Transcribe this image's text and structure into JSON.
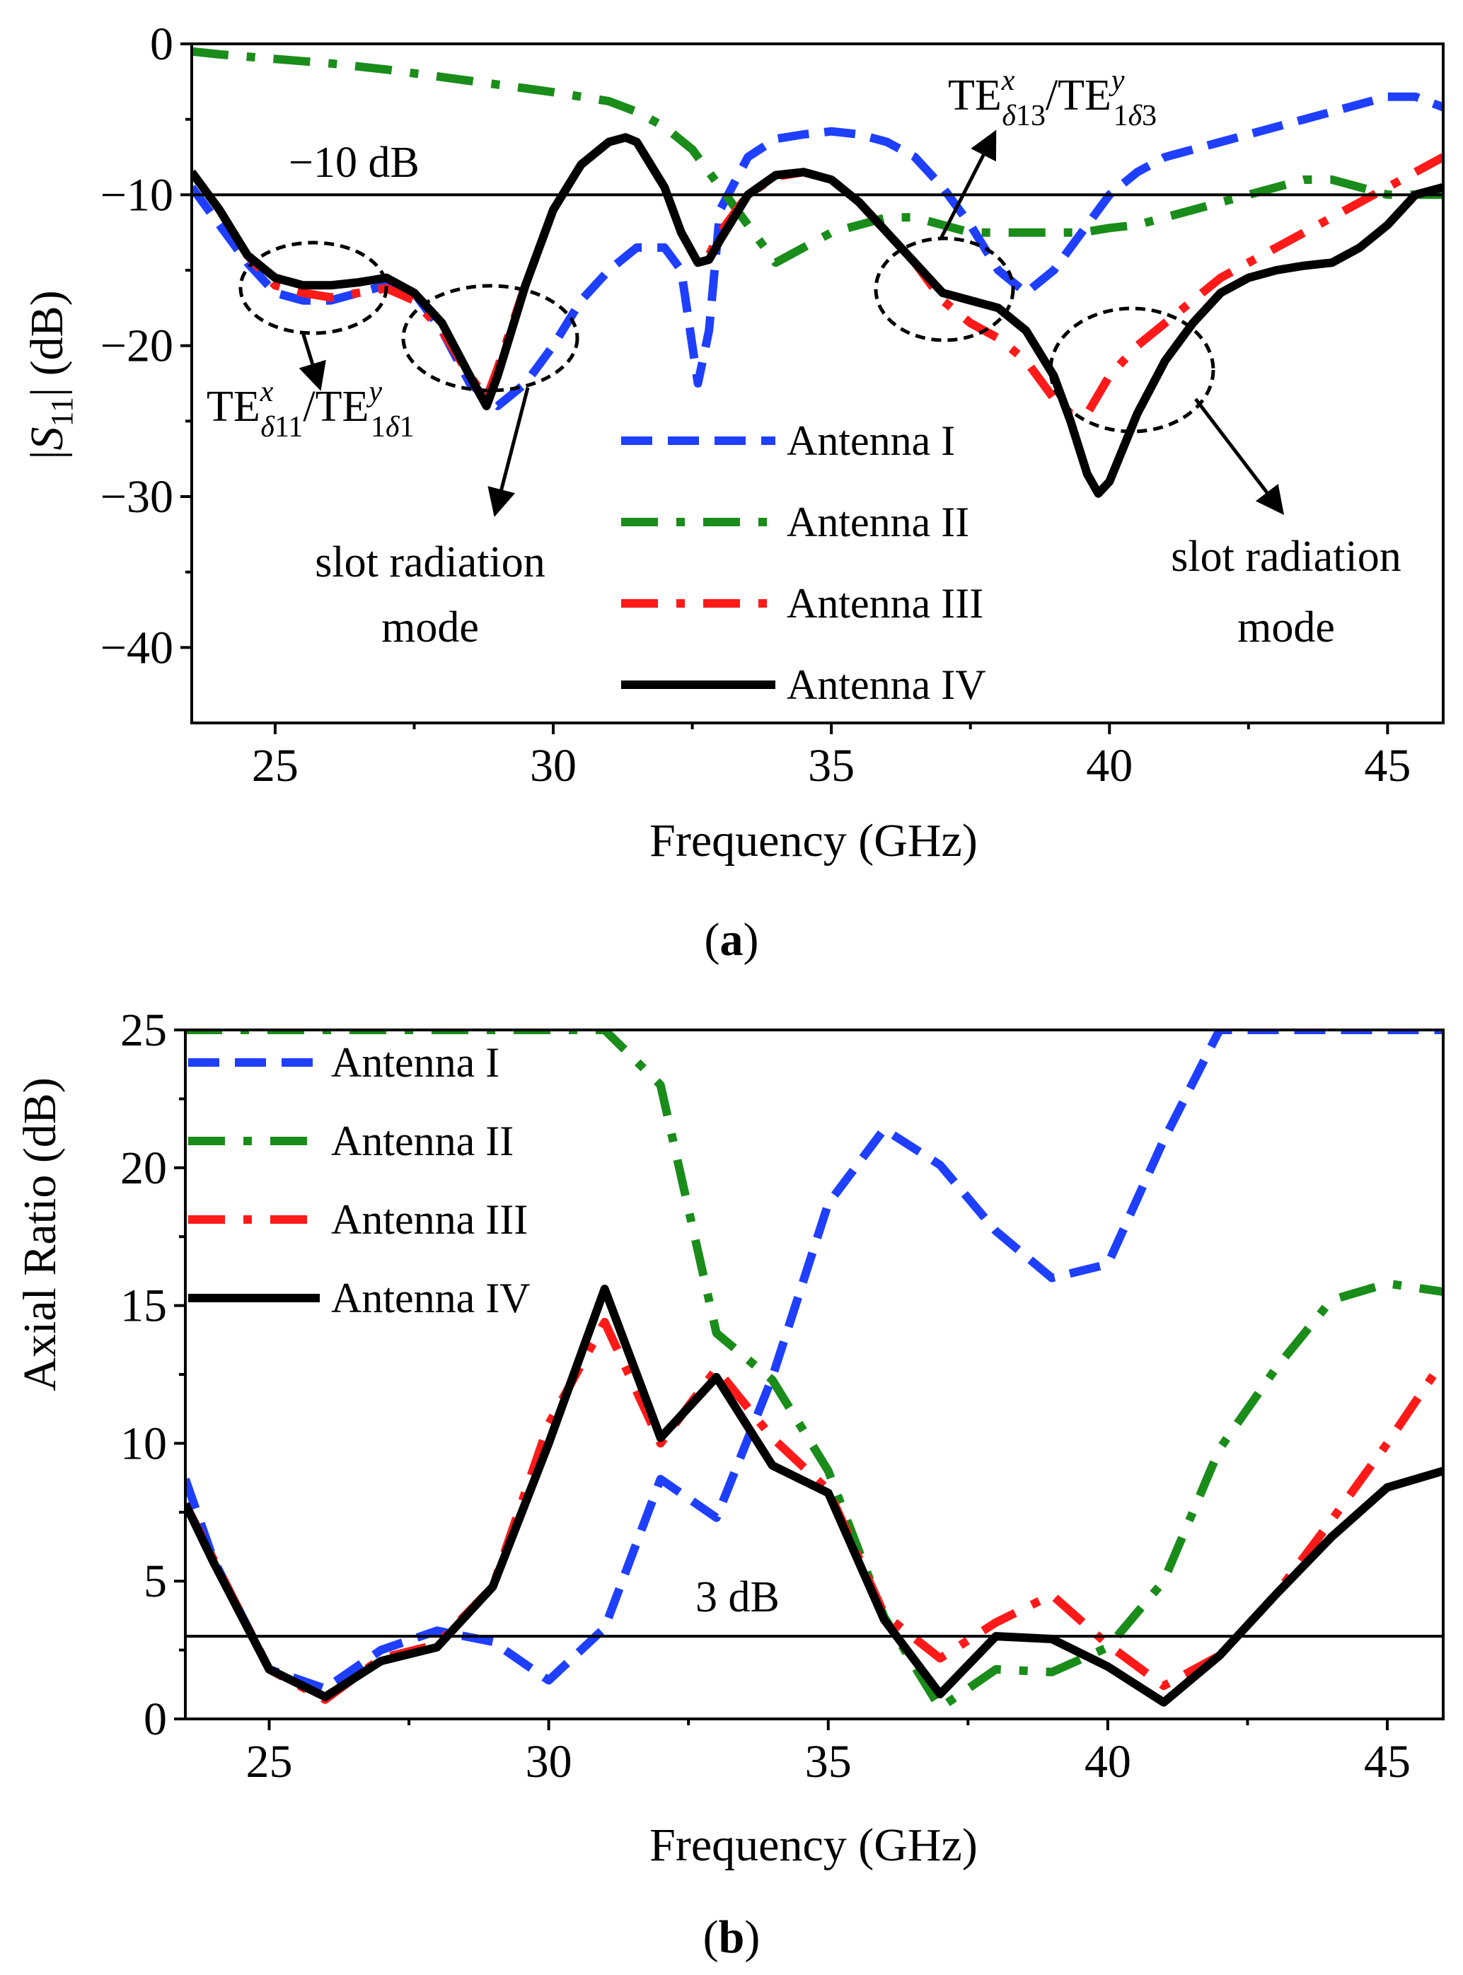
{
  "chart_data": [
    {
      "type": "line",
      "panel_label": "a",
      "xlabel": "Frequency (GHz)",
      "ylabel": "|S11| (dB)",
      "xlim": [
        23.5,
        46
      ],
      "ylim": [
        -45,
        0
      ],
      "xticks": [
        25,
        30,
        35,
        40,
        45
      ],
      "yticks": [
        0,
        -10,
        -20,
        -30,
        -40
      ],
      "ytick_labels": [
        "0",
        "−10",
        "−20",
        "−30",
        "−40"
      ],
      "grid": false,
      "legend_position": "bottom-center",
      "reference_line": {
        "y": -10,
        "label": "−10 dB"
      },
      "annotations": {
        "mode1": "TEx δ11/TEy 1δ1",
        "mode2": "TEx δ13/TEy 1δ3",
        "slot_left": [
          "slot radiation",
          "mode"
        ],
        "slot_right": [
          "slot radiation",
          "mode"
        ]
      },
      "series": [
        {
          "name": "Antenna I",
          "color": "#1f3fff",
          "dash": "dash",
          "x": [
            23.5,
            24,
            24.5,
            25,
            25.5,
            26,
            26.5,
            27,
            27.5,
            28,
            28.5,
            29,
            29.5,
            30,
            30.5,
            31,
            31.5,
            32,
            32.3,
            32.6,
            32.8,
            33,
            33.5,
            34,
            34.5,
            35,
            35.5,
            36,
            36.5,
            37,
            37.5,
            38,
            38.5,
            39,
            39.5,
            40,
            40.5,
            41,
            41.5,
            42,
            42.5,
            43,
            43.5,
            44,
            44.5,
            45,
            45.5,
            46
          ],
          "y": [
            -9.5,
            -12,
            -14.5,
            -16.5,
            -17,
            -17,
            -16.5,
            -16,
            -16.5,
            -19,
            -22.5,
            -24,
            -22.5,
            -20,
            -17,
            -15,
            -13.5,
            -13.5,
            -15,
            -22.5,
            -19,
            -11,
            -7.5,
            -6.3,
            -6,
            -5.8,
            -6,
            -6.5,
            -7.5,
            -9.5,
            -12,
            -15,
            -16.5,
            -15,
            -12.5,
            -10,
            -8.5,
            -7.5,
            -7,
            -6.5,
            -6,
            -5.5,
            -5,
            -4.5,
            -4,
            -3.5,
            -3.5,
            -4.2
          ]
        },
        {
          "name": "Antenna II",
          "color": "#1a8c1a",
          "dash": "dash-dot",
          "x": [
            23.5,
            24,
            25,
            26,
            27,
            28,
            29,
            30,
            30.5,
            31,
            31.5,
            32,
            32.5,
            33,
            33.5,
            34,
            34.5,
            35,
            35.5,
            36,
            36.5,
            37,
            37.5,
            38,
            38.5,
            39,
            39.5,
            40,
            40.5,
            41,
            41.5,
            42,
            42.5,
            43,
            43.5,
            44,
            44.5,
            45,
            45.5,
            46
          ],
          "y": [
            -0.5,
            -0.7,
            -1,
            -1.3,
            -1.7,
            -2.2,
            -2.7,
            -3.2,
            -3.5,
            -3.8,
            -4.5,
            -5.5,
            -7,
            -9.5,
            -12,
            -14.5,
            -13.5,
            -12.5,
            -12,
            -11.5,
            -11.5,
            -12,
            -12.5,
            -12.5,
            -12.5,
            -12.5,
            -12.5,
            -12.2,
            -12,
            -11.5,
            -11,
            -10.5,
            -10,
            -9.5,
            -9,
            -9,
            -9.5,
            -10,
            -10,
            -10
          ]
        },
        {
          "name": "Antenna III",
          "color": "#ff1a1a",
          "dash": "dash-dot",
          "x": [
            23.5,
            24,
            24.5,
            25,
            25.5,
            26,
            26.5,
            27,
            27.5,
            28,
            28.5,
            28.8,
            29,
            29.5,
            30,
            30.5,
            31,
            31.3,
            31.5,
            32,
            32.3,
            32.6,
            32.8,
            33,
            33.5,
            34,
            34.5,
            35,
            35.5,
            36,
            36.5,
            37,
            37.5,
            38,
            38.5,
            39,
            39.3,
            39.6,
            40,
            40.5,
            41,
            41.5,
            42,
            42.5,
            43,
            43.5,
            44,
            44.5,
            45,
            45.5,
            46
          ],
          "y": [
            -8.5,
            -11,
            -14,
            -16,
            -16.5,
            -16.8,
            -16.5,
            -16.2,
            -17,
            -19,
            -22,
            -23.5,
            -21.5,
            -16,
            -11,
            -8,
            -6.5,
            -6.2,
            -6.5,
            -9.5,
            -12.5,
            -14.5,
            -14,
            -12.5,
            -10,
            -8.8,
            -8.5,
            -9,
            -10.5,
            -12.5,
            -14.5,
            -17,
            -18.5,
            -19.5,
            -21,
            -23.5,
            -24.5,
            -24.5,
            -22,
            -20,
            -18.5,
            -17,
            -15.5,
            -14.5,
            -13.5,
            -12.5,
            -11.5,
            -10.5,
            -9.5,
            -8.5,
            -7.5
          ]
        },
        {
          "name": "Antenna IV",
          "color": "#000000",
          "dash": "solid",
          "x": [
            23.5,
            24,
            24.5,
            25,
            25.5,
            26,
            26.5,
            27,
            27.5,
            28,
            28.5,
            28.8,
            29,
            29.5,
            30,
            30.5,
            31,
            31.3,
            31.5,
            32,
            32.3,
            32.6,
            32.8,
            33,
            33.5,
            34,
            34.5,
            35,
            35.5,
            36,
            36.5,
            37,
            37.5,
            38,
            38.5,
            39,
            39.3,
            39.6,
            39.8,
            40,
            40.5,
            41,
            41.5,
            42,
            42.5,
            43,
            43.5,
            44,
            44.5,
            45,
            45.5,
            46
          ],
          "y": [
            -8.5,
            -11,
            -14,
            -15.5,
            -16,
            -16,
            -15.8,
            -15.5,
            -16.5,
            -18.5,
            -22,
            -24,
            -22,
            -16,
            -11,
            -8,
            -6.5,
            -6.2,
            -6.5,
            -9.5,
            -12.5,
            -14.5,
            -14.3,
            -13,
            -10,
            -8.7,
            -8.5,
            -9,
            -10.5,
            -12.5,
            -14.5,
            -16.5,
            -17,
            -17.5,
            -19,
            -22,
            -25,
            -28.5,
            -29.8,
            -29,
            -24.5,
            -21,
            -18.5,
            -16.5,
            -15.5,
            -15,
            -14.7,
            -14.5,
            -13.5,
            -12,
            -10,
            -9.5
          ]
        }
      ]
    },
    {
      "type": "line",
      "panel_label": "b",
      "xlabel": "Frequency (GHz)",
      "ylabel": "Axial Ratio (dB)",
      "xlim": [
        23.5,
        46
      ],
      "ylim": [
        0,
        25
      ],
      "xticks": [
        25,
        30,
        35,
        40,
        45
      ],
      "yticks": [
        0,
        5,
        10,
        15,
        20,
        25
      ],
      "grid": false,
      "legend_position": "top-left",
      "reference_line": {
        "y": 3,
        "label": "3 dB"
      },
      "series": [
        {
          "name": "Antenna I",
          "color": "#1f3fff",
          "dash": "dash",
          "x": [
            23.5,
            24,
            25,
            26,
            27,
            28,
            29,
            30,
            31,
            32,
            33,
            34,
            35,
            36,
            37,
            38,
            39,
            40,
            41,
            42,
            43,
            44,
            45,
            46
          ],
          "y": [
            8.7,
            5.8,
            1.8,
            1.1,
            2.5,
            3.2,
            2.8,
            1.4,
            3.3,
            8.7,
            7.3,
            12.4,
            18.7,
            21.4,
            20.1,
            17.7,
            16,
            16.5,
            21,
            25,
            25,
            25,
            25,
            25
          ]
        },
        {
          "name": "Antenna II",
          "color": "#1a8c1a",
          "dash": "dash-dot",
          "x": [
            23.5,
            24,
            25,
            26,
            27,
            28,
            29,
            30,
            31,
            32,
            33,
            34,
            35,
            36,
            37,
            38,
            39,
            40,
            41,
            42,
            43,
            44,
            45,
            46
          ],
          "y": [
            25,
            25,
            25,
            25,
            25,
            25,
            25,
            25,
            25,
            23,
            14,
            12.3,
            9,
            3.7,
            0.4,
            1.8,
            1.7,
            2.6,
            5,
            9.8,
            12.7,
            15.2,
            15.8,
            15.5
          ]
        },
        {
          "name": "Antenna III",
          "color": "#ff1a1a",
          "dash": "dash-dot",
          "x": [
            23.5,
            24,
            25,
            26,
            27,
            28,
            29,
            30,
            31,
            32,
            33,
            34,
            35,
            36,
            37,
            38,
            39,
            40,
            41,
            42,
            43,
            44,
            45,
            46
          ],
          "y": [
            7.8,
            5.8,
            1.8,
            0.7,
            2.2,
            2.7,
            4.8,
            10.7,
            14.4,
            10,
            12.7,
            10.2,
            8.3,
            3.8,
            2.2,
            3.5,
            4.5,
            2.7,
            1.2,
            2.3,
            4.5,
            7.2,
            10,
            13
          ]
        },
        {
          "name": "Antenna IV",
          "color": "#000000",
          "dash": "solid",
          "x": [
            23.5,
            24,
            25,
            26,
            27,
            28,
            29,
            30,
            31,
            32,
            33,
            34,
            35,
            36,
            37,
            38,
            39,
            40,
            41,
            42,
            43,
            44,
            45,
            46
          ],
          "y": [
            7.8,
            5.7,
            1.8,
            0.8,
            2.1,
            2.6,
            4.8,
            10,
            15.6,
            10.2,
            12.4,
            9.2,
            8.2,
            3.6,
            0.9,
            3,
            2.9,
            1.9,
            0.6,
            2.3,
            4.5,
            6.6,
            8.4,
            9
          ]
        }
      ]
    }
  ]
}
